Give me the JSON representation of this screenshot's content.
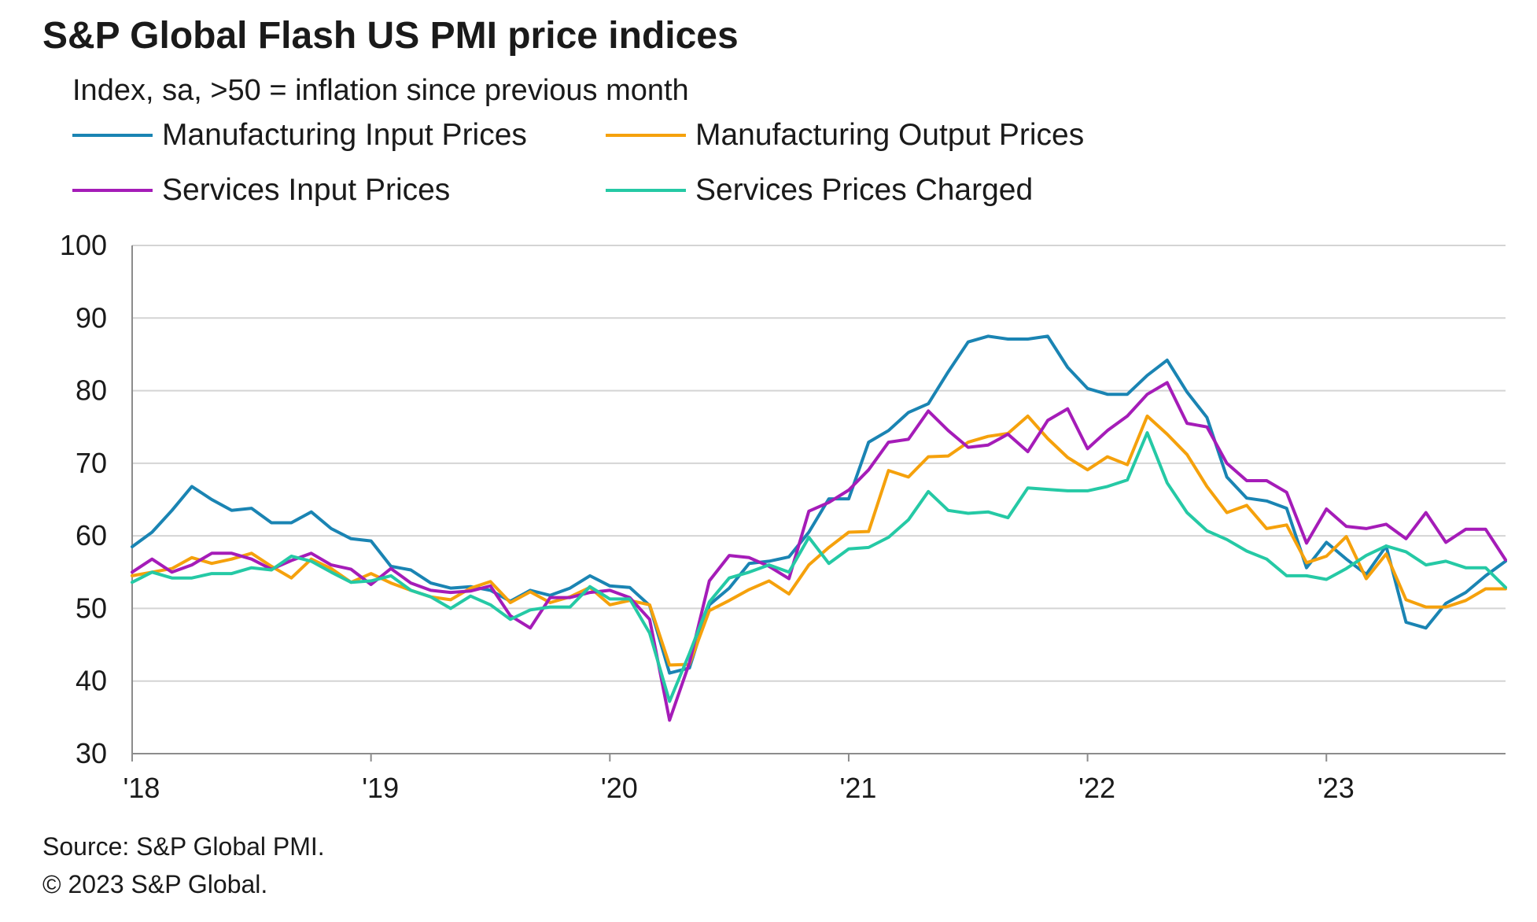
{
  "header": {
    "title": "S&P Global Flash US PMI price indices",
    "subtitle": "Index, sa, >50 = inflation since previous month"
  },
  "legend": [
    {
      "label": "Manufacturing Input Prices",
      "color": "#1a84b3"
    },
    {
      "label": "Manufacturing Output Prices",
      "color": "#f5a10c"
    },
    {
      "label": "Services Input Prices",
      "color": "#a51cb8"
    },
    {
      "label": "Services Prices Charged",
      "color": "#25c9a5"
    }
  ],
  "footer": {
    "source": "Source: S&P Global PMI.",
    "copyright": "© 2023 S&P Global."
  },
  "chart_data": {
    "type": "line",
    "x_start": "2018-01",
    "x_end": "2023-10",
    "x_ticks": [
      {
        "label": "'18",
        "month_index": 0
      },
      {
        "label": "'19",
        "month_index": 12
      },
      {
        "label": "'20",
        "month_index": 24
      },
      {
        "label": "'21",
        "month_index": 36
      },
      {
        "label": "'22",
        "month_index": 48
      },
      {
        "label": "'23",
        "month_index": 60
      }
    ],
    "ylim": [
      30,
      100
    ],
    "yticks": [
      30,
      40,
      50,
      60,
      70,
      80,
      90,
      100
    ],
    "grid": true,
    "series": [
      {
        "name": "Manufacturing Input Prices",
        "color": "#1a84b3",
        "values": [
          58.5,
          60.5,
          63.5,
          66.8,
          65.0,
          63.5,
          63.8,
          61.8,
          61.8,
          63.3,
          61.0,
          59.6,
          59.3,
          55.8,
          55.3,
          53.5,
          52.8,
          53.0,
          52.5,
          51.0,
          52.5,
          51.8,
          52.8,
          54.5,
          53.1,
          52.9,
          50.4,
          41.1,
          41.8,
          50.5,
          52.8,
          56.2,
          56.5,
          57.1,
          60.5,
          65.1,
          65.1,
          72.9,
          74.5,
          77.0,
          78.2,
          82.6,
          86.7,
          87.5,
          87.1,
          87.1,
          87.5,
          83.2,
          80.3,
          79.5,
          79.5,
          82.1,
          84.2,
          79.8,
          76.3,
          68.1,
          65.2,
          64.8,
          63.8,
          55.6,
          59.1,
          56.8,
          54.7,
          58.6,
          48.1,
          47.3,
          50.7,
          52.2,
          54.5,
          56.5
        ]
      },
      {
        "name": "Manufacturing Output Prices",
        "color": "#f5a10c",
        "values": [
          54.5,
          55.0,
          55.5,
          57.0,
          56.2,
          56.8,
          57.6,
          55.8,
          54.2,
          56.8,
          55.5,
          53.6,
          54.8,
          53.5,
          52.5,
          51.6,
          51.2,
          52.8,
          53.7,
          50.8,
          52.3,
          50.8,
          51.6,
          52.9,
          50.5,
          51.1,
          50.5,
          42.2,
          42.3,
          49.7,
          51.1,
          52.6,
          53.8,
          52.0,
          56.0,
          58.4,
          60.5,
          60.6,
          69.0,
          68.1,
          70.9,
          71.0,
          72.9,
          73.7,
          74.1,
          76.5,
          73.4,
          70.8,
          69.1,
          70.9,
          69.8,
          76.5,
          74.0,
          71.2,
          66.8,
          63.2,
          64.2,
          61.0,
          61.5,
          56.3,
          57.2,
          59.9,
          54.1,
          57.5,
          51.2,
          50.2,
          50.2,
          51.1,
          52.7,
          52.7
        ]
      },
      {
        "name": "Services Input Prices",
        "color": "#a51cb8",
        "values": [
          55.0,
          56.8,
          55.0,
          56.0,
          57.6,
          57.6,
          56.8,
          55.4,
          56.6,
          57.6,
          56.0,
          55.4,
          53.3,
          55.5,
          53.5,
          52.5,
          52.2,
          52.4,
          53.1,
          49.0,
          47.3,
          51.5,
          51.5,
          52.2,
          52.5,
          51.5,
          48.5,
          34.6,
          42.5,
          53.8,
          57.3,
          57.0,
          55.8,
          54.1,
          63.4,
          64.6,
          66.3,
          69.1,
          72.9,
          73.3,
          77.2,
          74.5,
          72.2,
          72.5,
          74.0,
          71.6,
          75.9,
          77.5,
          72.0,
          74.5,
          76.5,
          79.5,
          81.1,
          75.5,
          75.0,
          70.0,
          67.6,
          67.6,
          66.0,
          59.0,
          63.7,
          61.3,
          61.0,
          61.6,
          59.6,
          63.2,
          59.1,
          60.9,
          60.9,
          56.7
        ]
      },
      {
        "name": "Services Prices Charged",
        "color": "#25c9a5",
        "values": [
          53.6,
          55.0,
          54.2,
          54.2,
          54.8,
          54.8,
          55.6,
          55.3,
          57.2,
          56.5,
          55.0,
          53.6,
          53.8,
          54.5,
          52.5,
          51.6,
          50.0,
          51.7,
          50.5,
          48.5,
          49.8,
          50.2,
          50.2,
          53.0,
          51.3,
          51.3,
          46.6,
          37.2,
          43.8,
          50.9,
          54.2,
          55.0,
          56.0,
          55.0,
          59.8,
          56.2,
          58.2,
          58.4,
          59.8,
          62.2,
          66.1,
          63.5,
          63.1,
          63.3,
          62.5,
          66.6,
          66.4,
          66.2,
          66.2,
          66.8,
          67.7,
          74.2,
          67.3,
          63.2,
          60.7,
          59.5,
          57.9,
          56.8,
          54.5,
          54.5,
          54.0,
          55.5,
          57.3,
          58.6,
          57.8,
          56.0,
          56.5,
          55.6,
          55.6,
          52.9
        ]
      }
    ]
  }
}
